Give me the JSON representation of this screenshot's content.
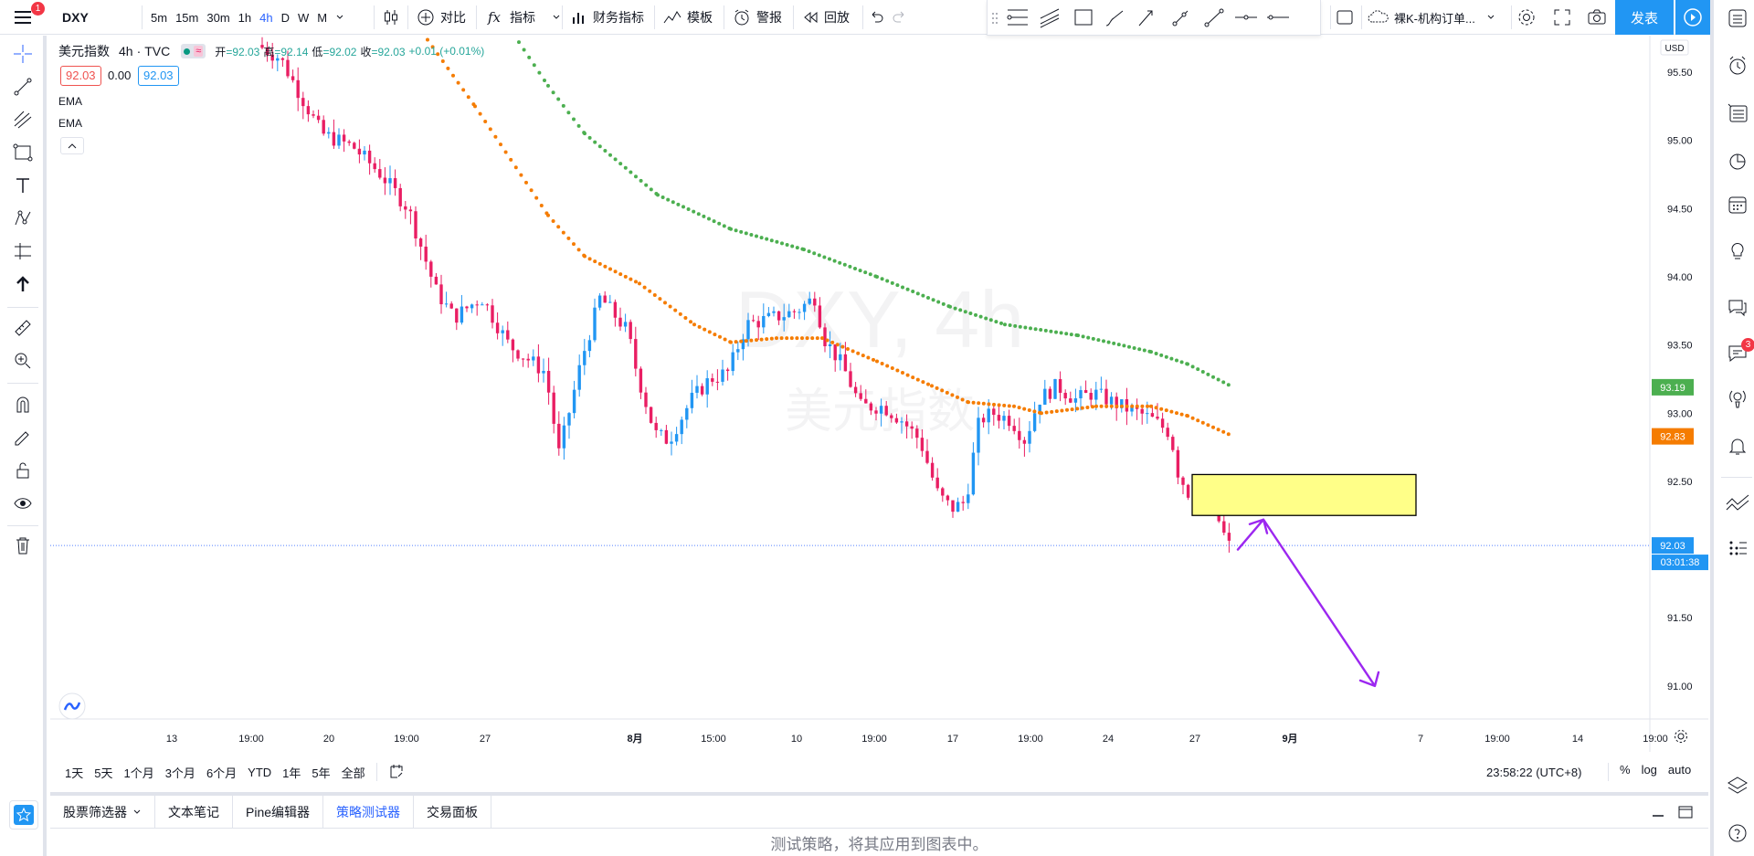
{
  "topbar": {
    "symbol": "DXY",
    "intervals": [
      "5m",
      "15m",
      "30m",
      "1h",
      "4h",
      "D",
      "W",
      "M"
    ],
    "active_interval": "4h",
    "compare_label": "对比",
    "indicators_label": "指标",
    "financials_label": "财务指标",
    "template_label": "模板",
    "alert_label": "警报",
    "replay_label": "回放",
    "layout_name": "裸K-机构订单...",
    "publish_label": "发表",
    "menu_badge": "1"
  },
  "legend": {
    "title": "美元指数",
    "interval": "4h",
    "source": "TVC",
    "open_label": "开",
    "open": "=92.03",
    "high_label": "高",
    "high": "=92.14",
    "low_label": "低",
    "low": "=92.02",
    "close_label": "收",
    "close": "=92.03",
    "change": "+0.01 (+0.01%)",
    "bid": "92.03",
    "spread": "0.00",
    "ask": "92.03",
    "ema1": "EMA",
    "ema2": "EMA"
  },
  "watermark": {
    "symbol": "DXY, 4h",
    "name": "美元指数"
  },
  "currency": "USD",
  "price_axis": {
    "ticks": [
      "95.50",
      "95.00",
      "94.50",
      "94.00",
      "93.50",
      "93.00",
      "92.50",
      "92.00",
      "91.50",
      "91.00"
    ],
    "labels": {
      "ema_slow": "93.19",
      "ema_fast": "92.83",
      "last": "92.03",
      "countdown": "03:01:38"
    }
  },
  "time_axis": {
    "ticks": [
      "13",
      "19:00",
      "20",
      "19:00",
      "27",
      "8月",
      "15:00",
      "10",
      "19:00",
      "17",
      "19:00",
      "24",
      "27",
      "9月",
      "7",
      "19:00",
      "14",
      "19:00"
    ]
  },
  "timeframes": [
    "1天",
    "5天",
    "1个月",
    "3个月",
    "6个月",
    "YTD",
    "1年",
    "5年",
    "全部"
  ],
  "clock": "23:58:22 (UTC+8)",
  "scale_options": [
    "%",
    "log",
    "auto"
  ],
  "bottom_tabs": [
    "股票筛选器",
    "文本笔记",
    "Pine编辑器",
    "策略测试器",
    "交易面板"
  ],
  "active_bottom_tab": "策略测试器",
  "bottom_message": "测试策略，将其应用到图表中。",
  "right_badge": "3",
  "colors": {
    "up": "#2196f3",
    "down": "#e91e63",
    "ema_fast": "#f57c00",
    "ema_slow": "#4caf50",
    "accent": "#2962ff",
    "zone": "#ffff88",
    "arrow": "#9c27f0"
  },
  "chart_data": {
    "type": "candlestick",
    "symbol": "DXY",
    "interval": "4h",
    "ylim": [
      90.7,
      95.9
    ],
    "price_line": 92.03,
    "ema_fast_last": 92.83,
    "ema_slow_last": 93.19,
    "zone": [
      92.25,
      92.55
    ],
    "projection": [
      92.0,
      92.22,
      91.0
    ]
  }
}
